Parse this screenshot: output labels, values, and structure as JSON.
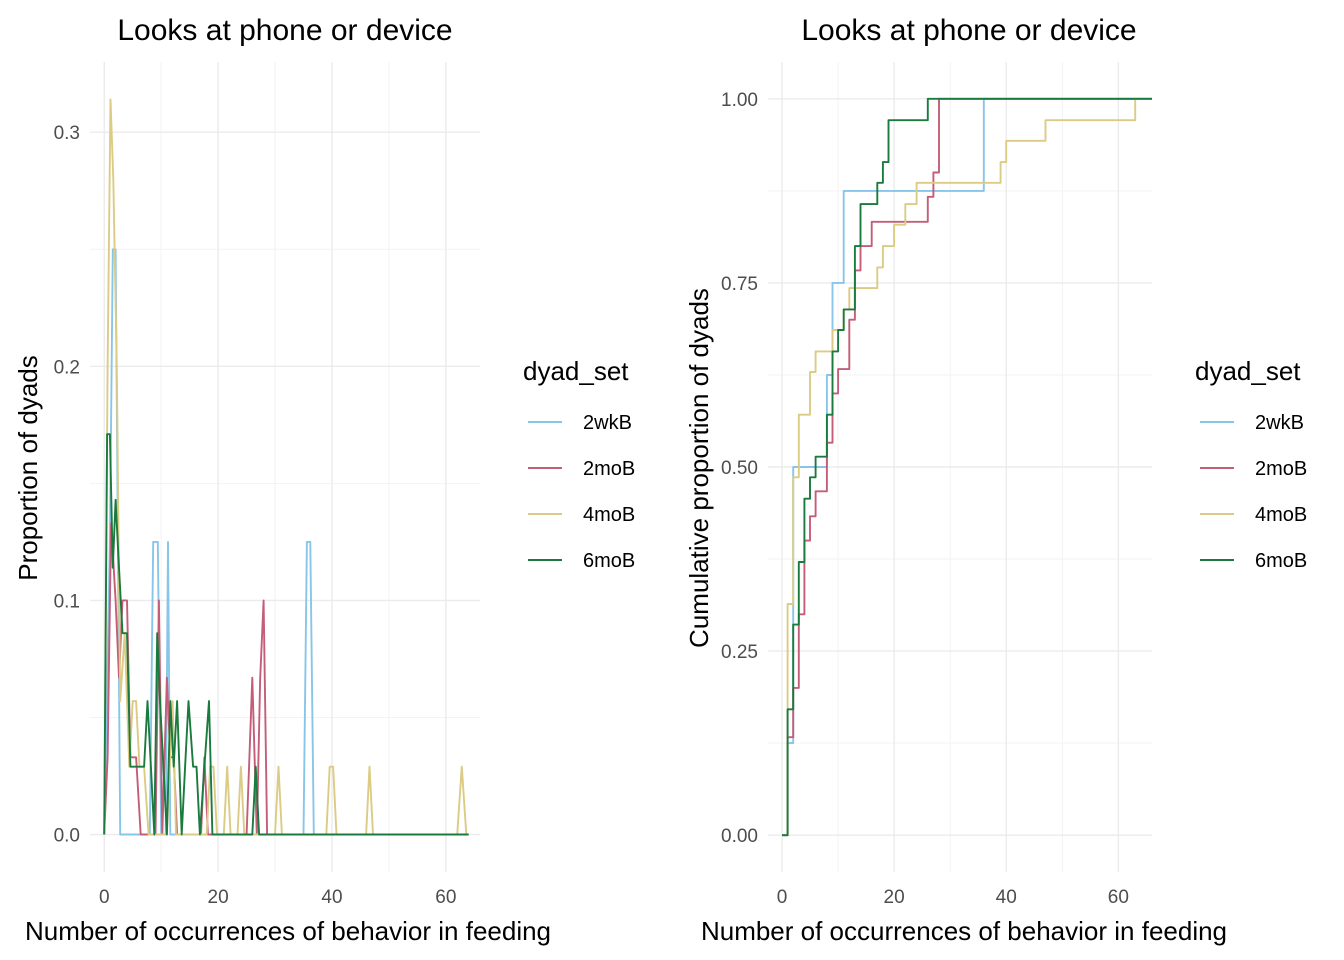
{
  "chart_data": [
    {
      "type": "line",
      "title": "Looks at phone or device",
      "xlabel": "Number of occurrences of behavior in feeding",
      "ylabel": "Proportion of dyads",
      "xlim": [
        -2.5,
        66
      ],
      "ylim": [
        -0.016,
        0.33
      ],
      "x_ticks": [
        0,
        20,
        40,
        60
      ],
      "y_ticks": [
        0.0,
        0.1,
        0.2,
        0.3
      ],
      "x_tick_labels": [
        "0",
        "20",
        "40",
        "60"
      ],
      "y_tick_labels": [
        "0.0",
        "0.1",
        "0.2",
        "0.3"
      ],
      "grid": true,
      "legend": {
        "title": "dyad_set",
        "position": "right"
      },
      "series": [
        {
          "name": "2wkB",
          "color": "#88c5e8",
          "points": [
            [
              0,
              0
            ],
            [
              1,
              0.125
            ],
            [
              1.5,
              0.25
            ],
            [
              2,
              0.25
            ],
            [
              2.8,
              0
            ],
            [
              8,
              0
            ],
            [
              8.6,
              0.125
            ],
            [
              9.4,
              0.125
            ],
            [
              10,
              0
            ],
            [
              10.8,
              0
            ],
            [
              11.2,
              0.125
            ],
            [
              11.6,
              0
            ],
            [
              35,
              0
            ],
            [
              35.6,
              0.125
            ],
            [
              36.2,
              0.125
            ],
            [
              36.8,
              0
            ],
            [
              64,
              0
            ]
          ]
        },
        {
          "name": "2moB",
          "color": "#c45e78",
          "points": [
            [
              0,
              0
            ],
            [
              0.6,
              0.033
            ],
            [
              1.2,
              0.133
            ],
            [
              2,
              0.1
            ],
            [
              2.6,
              0.067
            ],
            [
              3.2,
              0.1
            ],
            [
              4,
              0.1
            ],
            [
              4.6,
              0.033
            ],
            [
              5.6,
              0.033
            ],
            [
              6.4,
              0
            ],
            [
              9,
              0
            ],
            [
              9.6,
              0.1
            ],
            [
              10.2,
              0
            ],
            [
              11,
              0.067
            ],
            [
              11.6,
              0.033
            ],
            [
              12.2,
              0.033
            ],
            [
              12.8,
              0
            ],
            [
              17,
              0
            ],
            [
              17.6,
              0.033
            ],
            [
              18.2,
              0
            ],
            [
              25,
              0
            ],
            [
              26,
              0.067
            ],
            [
              26.8,
              0
            ],
            [
              27.4,
              0.067
            ],
            [
              28,
              0.1
            ],
            [
              28.6,
              0
            ],
            [
              64,
              0
            ]
          ]
        },
        {
          "name": "4moB",
          "color": "#dbcb84",
          "points": [
            [
              0,
              0
            ],
            [
              0.6,
              0.2
            ],
            [
              1.1,
              0.314
            ],
            [
              1.6,
              0.28
            ],
            [
              2.2,
              0.2
            ],
            [
              2.8,
              0.057
            ],
            [
              3.6,
              0.086
            ],
            [
              4.4,
              0.029
            ],
            [
              5,
              0.057
            ],
            [
              5.6,
              0.057
            ],
            [
              6.2,
              0.029
            ],
            [
              7,
              0.029
            ],
            [
              7.8,
              0
            ],
            [
              11,
              0
            ],
            [
              11.5,
              0.029
            ],
            [
              12,
              0.057
            ],
            [
              12.6,
              0
            ],
            [
              18,
              0
            ],
            [
              18.6,
              0.029
            ],
            [
              19.2,
              0.029
            ],
            [
              19.8,
              0
            ],
            [
              21,
              0
            ],
            [
              21.6,
              0.029
            ],
            [
              22.2,
              0
            ],
            [
              23.4,
              0
            ],
            [
              24,
              0.029
            ],
            [
              24.6,
              0
            ],
            [
              30,
              0
            ],
            [
              30.6,
              0.029
            ],
            [
              31.2,
              0
            ],
            [
              39,
              0
            ],
            [
              39.6,
              0.029
            ],
            [
              40.2,
              0.029
            ],
            [
              40.8,
              0
            ],
            [
              46,
              0
            ],
            [
              46.6,
              0.029
            ],
            [
              47.2,
              0
            ],
            [
              62,
              0
            ],
            [
              62.8,
              0.029
            ],
            [
              63.6,
              0
            ],
            [
              64,
              0
            ]
          ]
        },
        {
          "name": "6moB",
          "color": "#1b7a3d",
          "points": [
            [
              0,
              0
            ],
            [
              0.5,
              0.171
            ],
            [
              1,
              0.171
            ],
            [
              1.5,
              0.114
            ],
            [
              2,
              0.143
            ],
            [
              2.6,
              0.114
            ],
            [
              3.2,
              0.086
            ],
            [
              4,
              0.086
            ],
            [
              4.6,
              0.029
            ],
            [
              7,
              0.029
            ],
            [
              7.6,
              0.057
            ],
            [
              8.2,
              0.029
            ],
            [
              8.8,
              0
            ],
            [
              9.3,
              0.086
            ],
            [
              9.8,
              0.057
            ],
            [
              10.4,
              0.029
            ],
            [
              11,
              0
            ],
            [
              11.6,
              0.057
            ],
            [
              12.2,
              0.029
            ],
            [
              12.8,
              0.057
            ],
            [
              13.6,
              0
            ],
            [
              14.2,
              0.029
            ],
            [
              14.8,
              0.057
            ],
            [
              15.6,
              0.029
            ],
            [
              16.2,
              0.029
            ],
            [
              16.8,
              0
            ],
            [
              17.6,
              0.029
            ],
            [
              18.4,
              0.057
            ],
            [
              19,
              0
            ],
            [
              26,
              0
            ],
            [
              26.6,
              0.029
            ],
            [
              27.2,
              0
            ],
            [
              64,
              0
            ]
          ]
        }
      ]
    },
    {
      "type": "line",
      "title": "Looks at phone or device",
      "xlabel": "Number of occurrences of behavior in feeding",
      "ylabel": "Cumulative proportion of dyads",
      "xlim": [
        -2.5,
        66
      ],
      "ylim": [
        -0.05,
        1.05
      ],
      "x_ticks": [
        0,
        20,
        40,
        60
      ],
      "y_ticks": [
        0.0,
        0.25,
        0.5,
        0.75,
        1.0
      ],
      "x_tick_labels": [
        "0",
        "20",
        "40",
        "60"
      ],
      "y_tick_labels": [
        "0.00",
        "0.25",
        "0.50",
        "0.75",
        "1.00"
      ],
      "grid": true,
      "legend": {
        "title": "dyad_set",
        "position": "right"
      },
      "series": [
        {
          "name": "2wkB",
          "color": "#88c5e8",
          "points": [
            [
              0,
              0
            ],
            [
              1,
              0
            ],
            [
              1,
              0.125
            ],
            [
              2,
              0.125
            ],
            [
              2,
              0.5
            ],
            [
              3,
              0.5
            ],
            [
              8,
              0.5
            ],
            [
              8,
              0.625
            ],
            [
              9,
              0.625
            ],
            [
              9,
              0.75
            ],
            [
              11,
              0.75
            ],
            [
              11,
              0.875
            ],
            [
              36,
              0.875
            ],
            [
              36,
              1.0
            ],
            [
              66,
              1.0
            ]
          ]
        },
        {
          "name": "2moB",
          "color": "#c45e78",
          "points": [
            [
              0,
              0
            ],
            [
              1,
              0
            ],
            [
              1,
              0.133
            ],
            [
              2,
              0.133
            ],
            [
              2,
              0.2
            ],
            [
              3,
              0.2
            ],
            [
              3,
              0.3
            ],
            [
              4,
              0.3
            ],
            [
              4,
              0.4
            ],
            [
              5,
              0.4
            ],
            [
              5,
              0.433
            ],
            [
              6,
              0.433
            ],
            [
              6,
              0.467
            ],
            [
              8,
              0.467
            ],
            [
              8,
              0.533
            ],
            [
              9,
              0.533
            ],
            [
              9,
              0.6
            ],
            [
              10,
              0.6
            ],
            [
              10,
              0.633
            ],
            [
              12,
              0.633
            ],
            [
              12,
              0.7
            ],
            [
              13,
              0.7
            ],
            [
              13,
              0.767
            ],
            [
              14,
              0.767
            ],
            [
              14,
              0.8
            ],
            [
              16,
              0.8
            ],
            [
              16,
              0.833
            ],
            [
              26,
              0.833
            ],
            [
              26,
              0.867
            ],
            [
              27,
              0.867
            ],
            [
              27,
              0.9
            ],
            [
              28,
              0.9
            ],
            [
              28,
              1.0
            ],
            [
              66,
              1.0
            ]
          ]
        },
        {
          "name": "4moB",
          "color": "#dbcb84",
          "points": [
            [
              0,
              0
            ],
            [
              1,
              0
            ],
            [
              1,
              0.314
            ],
            [
              2,
              0.314
            ],
            [
              2,
              0.486
            ],
            [
              3,
              0.486
            ],
            [
              3,
              0.571
            ],
            [
              5,
              0.571
            ],
            [
              5,
              0.629
            ],
            [
              6,
              0.629
            ],
            [
              6,
              0.657
            ],
            [
              9,
              0.657
            ],
            [
              9,
              0.686
            ],
            [
              11,
              0.686
            ],
            [
              11,
              0.714
            ],
            [
              12,
              0.714
            ],
            [
              12,
              0.743
            ],
            [
              17,
              0.743
            ],
            [
              17,
              0.771
            ],
            [
              18,
              0.771
            ],
            [
              18,
              0.8
            ],
            [
              20,
              0.8
            ],
            [
              20,
              0.829
            ],
            [
              22,
              0.829
            ],
            [
              22,
              0.857
            ],
            [
              24,
              0.857
            ],
            [
              24,
              0.886
            ],
            [
              39,
              0.886
            ],
            [
              39,
              0.914
            ],
            [
              40,
              0.914
            ],
            [
              40,
              0.943
            ],
            [
              47,
              0.943
            ],
            [
              47,
              0.971
            ],
            [
              63,
              0.971
            ],
            [
              63,
              1.0
            ],
            [
              66,
              1.0
            ]
          ]
        },
        {
          "name": "6moB",
          "color": "#1b7a3d",
          "points": [
            [
              0,
              0
            ],
            [
              1,
              0
            ],
            [
              1,
              0.171
            ],
            [
              2,
              0.171
            ],
            [
              2,
              0.286
            ],
            [
              3,
              0.286
            ],
            [
              3,
              0.371
            ],
            [
              4,
              0.371
            ],
            [
              4,
              0.457
            ],
            [
              5,
              0.457
            ],
            [
              5,
              0.486
            ],
            [
              6,
              0.486
            ],
            [
              6,
              0.514
            ],
            [
              8,
              0.514
            ],
            [
              8,
              0.571
            ],
            [
              9,
              0.571
            ],
            [
              9,
              0.657
            ],
            [
              10,
              0.657
            ],
            [
              10,
              0.686
            ],
            [
              11,
              0.686
            ],
            [
              11,
              0.714
            ],
            [
              13,
              0.714
            ],
            [
              13,
              0.8
            ],
            [
              14,
              0.8
            ],
            [
              14,
              0.857
            ],
            [
              17,
              0.857
            ],
            [
              17,
              0.886
            ],
            [
              18,
              0.886
            ],
            [
              18,
              0.914
            ],
            [
              19,
              0.914
            ],
            [
              19,
              0.971
            ],
            [
              26,
              0.971
            ],
            [
              26,
              1.0
            ],
            [
              66,
              1.0
            ]
          ]
        }
      ]
    }
  ]
}
